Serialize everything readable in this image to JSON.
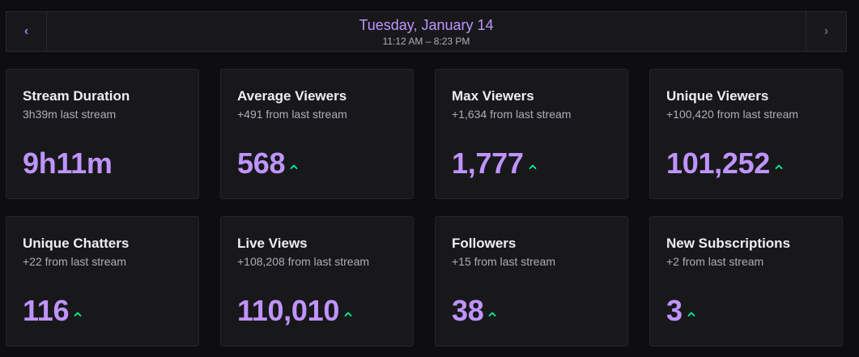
{
  "header": {
    "date": "Tuesday, January 14",
    "time_range": "11:12 AM – 8:23 PM",
    "prev_icon": "chevron-left-icon",
    "next_icon": "chevron-right-icon"
  },
  "colors": {
    "accent": "#bf94ff",
    "increase": "#00f593",
    "background": "#0e0e10",
    "card": "#18181b"
  },
  "stats": [
    {
      "title": "Stream Duration",
      "subtitle": "3h39m last stream",
      "value": "9h11m",
      "trend": "none"
    },
    {
      "title": "Average Viewers",
      "subtitle": "+491 from last stream",
      "value": "568",
      "trend": "up"
    },
    {
      "title": "Max Viewers",
      "subtitle": "+1,634 from last stream",
      "value": "1,777",
      "trend": "up"
    },
    {
      "title": "Unique Viewers",
      "subtitle": "+100,420 from last stream",
      "value": "101,252",
      "trend": "up"
    },
    {
      "title": "Unique Chatters",
      "subtitle": "+22 from last stream",
      "value": "116",
      "trend": "up"
    },
    {
      "title": "Live Views",
      "subtitle": "+108,208 from last stream",
      "value": "110,010",
      "trend": "up"
    },
    {
      "title": "Followers",
      "subtitle": "+15 from last stream",
      "value": "38",
      "trend": "up"
    },
    {
      "title": "New Subscriptions",
      "subtitle": "+2 from last stream",
      "value": "3",
      "trend": "up"
    }
  ]
}
